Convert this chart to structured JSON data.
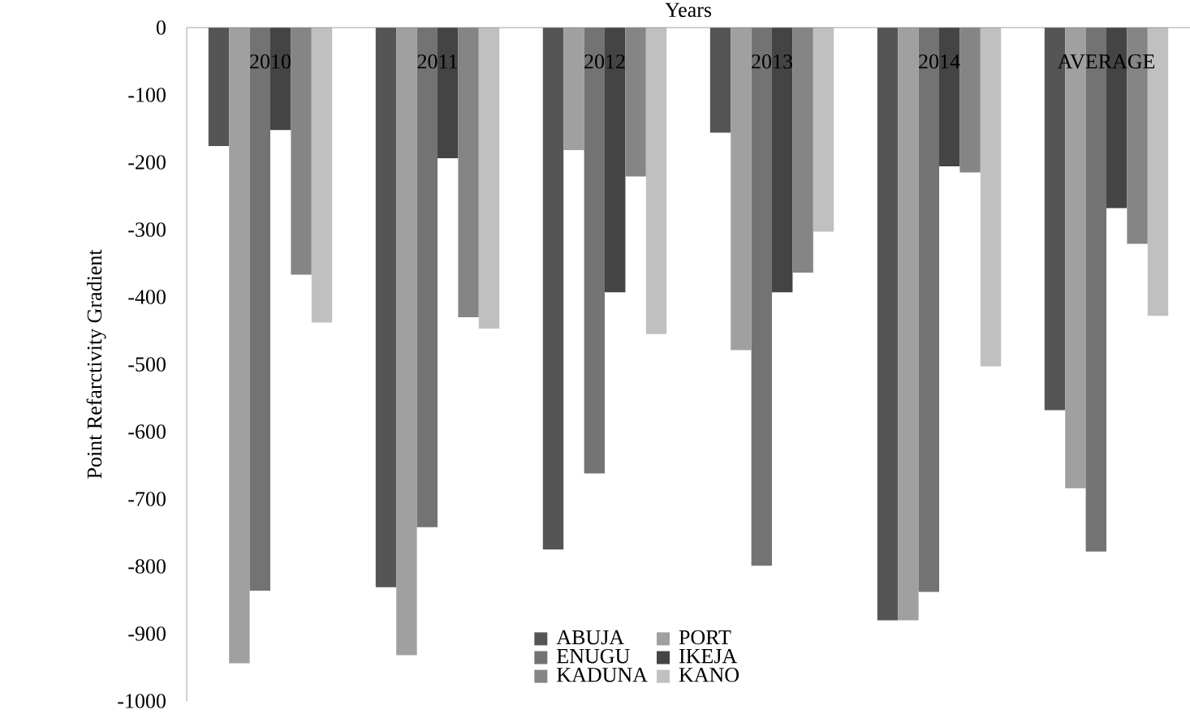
{
  "chart_data": {
    "type": "bar",
    "xlabel": "Years",
    "ylabel": "Point Refarctivity Gradient",
    "categories": [
      "2010",
      "2011",
      "2012",
      "2013",
      "2014",
      "AVERAGE"
    ],
    "series": [
      {
        "name": "ABUJA",
        "color": "#555555",
        "values": [
          -176,
          -831,
          -775,
          -156,
          -880,
          -568
        ]
      },
      {
        "name": "PORT",
        "color": "#a0a0a0",
        "values": [
          -944,
          -932,
          -182,
          -479,
          -880,
          -684
        ]
      },
      {
        "name": "ENUGU",
        "color": "#737373",
        "values": [
          -836,
          -742,
          -662,
          -799,
          -838,
          -778
        ]
      },
      {
        "name": "IKEJA",
        "color": "#444444",
        "values": [
          -152,
          -194,
          -393,
          -393,
          -206,
          -268
        ]
      },
      {
        "name": "KADUNA",
        "color": "#858585",
        "values": [
          -367,
          -430,
          -221,
          -364,
          -215,
          -321
        ]
      },
      {
        "name": "KANO",
        "color": "#c0c0c0",
        "values": [
          -438,
          -447,
          -455,
          -303,
          -503,
          -428
        ]
      }
    ],
    "ylim": [
      -1000,
      0
    ],
    "yticks": [
      -1000,
      -900,
      -800,
      -700,
      -600,
      -500,
      -400,
      -300,
      -200,
      -100,
      0
    ],
    "legend": "bottom"
  }
}
